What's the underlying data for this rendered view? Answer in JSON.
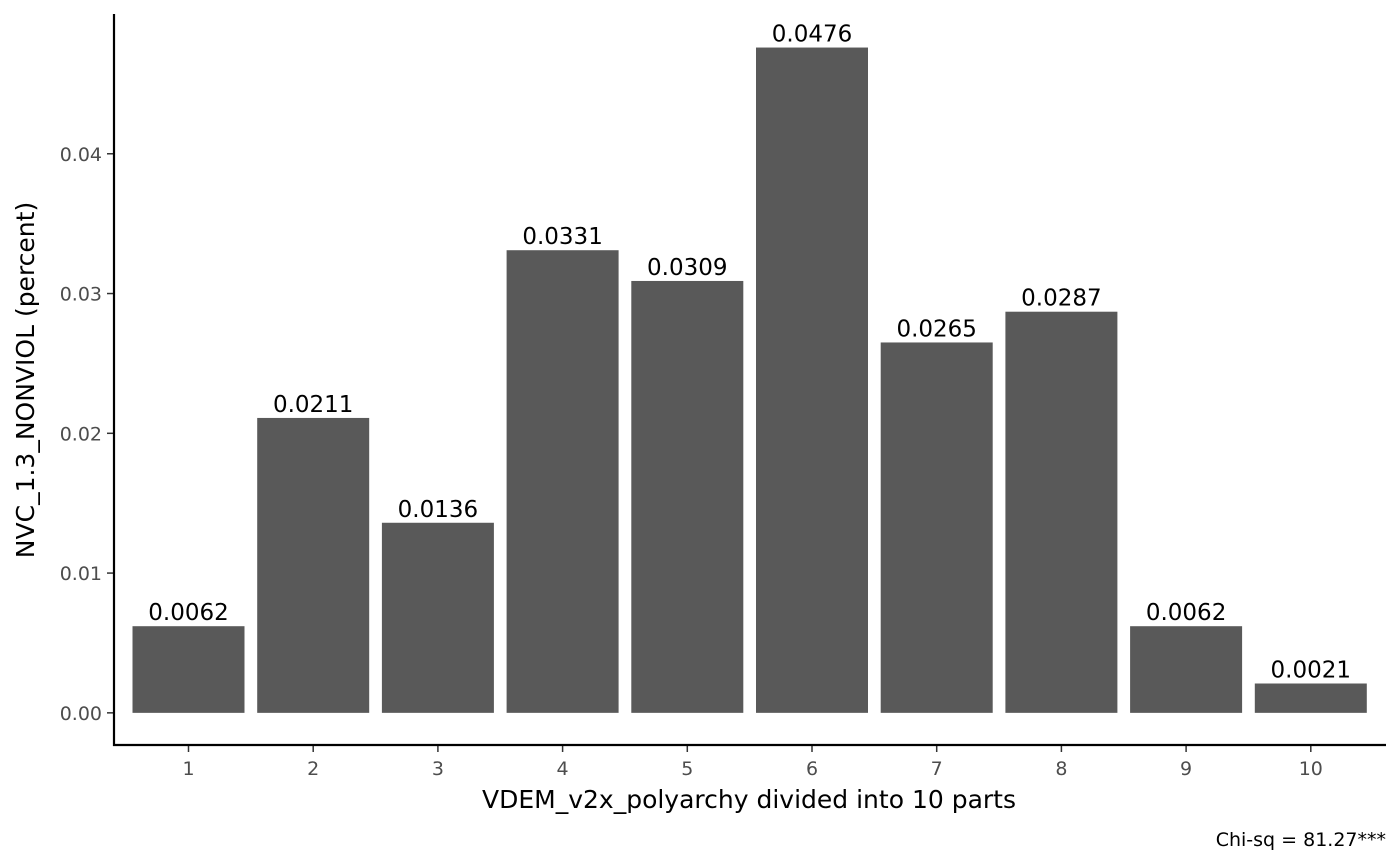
{
  "chart_data": {
    "type": "bar",
    "categories": [
      "1",
      "2",
      "3",
      "4",
      "5",
      "6",
      "7",
      "8",
      "9",
      "10"
    ],
    "values": [
      0.0062,
      0.0211,
      0.0136,
      0.0331,
      0.0309,
      0.0476,
      0.0265,
      0.0287,
      0.0062,
      0.0021
    ],
    "value_labels": [
      "0.0062",
      "0.0211",
      "0.0136",
      "0.0331",
      "0.0309",
      "0.0476",
      "0.0265",
      "0.0287",
      "0.0062",
      "0.0021"
    ],
    "title": "",
    "xlabel": "VDEM_v2x_polyarchy divided into 10 parts",
    "ylabel": "NVC_1.3_NONVIOL (percent)",
    "ylim": [
      -0.0023,
      0.05
    ],
    "yticks": [
      0.0,
      0.01,
      0.02,
      0.03,
      0.04
    ],
    "ytick_labels": [
      "0.00",
      "0.01",
      "0.02",
      "0.03",
      "0.04"
    ],
    "caption": "Chi-sq = 81.27***",
    "grid": false,
    "legend": "none",
    "bar_color": "#595959",
    "axis_color": "#000000"
  }
}
